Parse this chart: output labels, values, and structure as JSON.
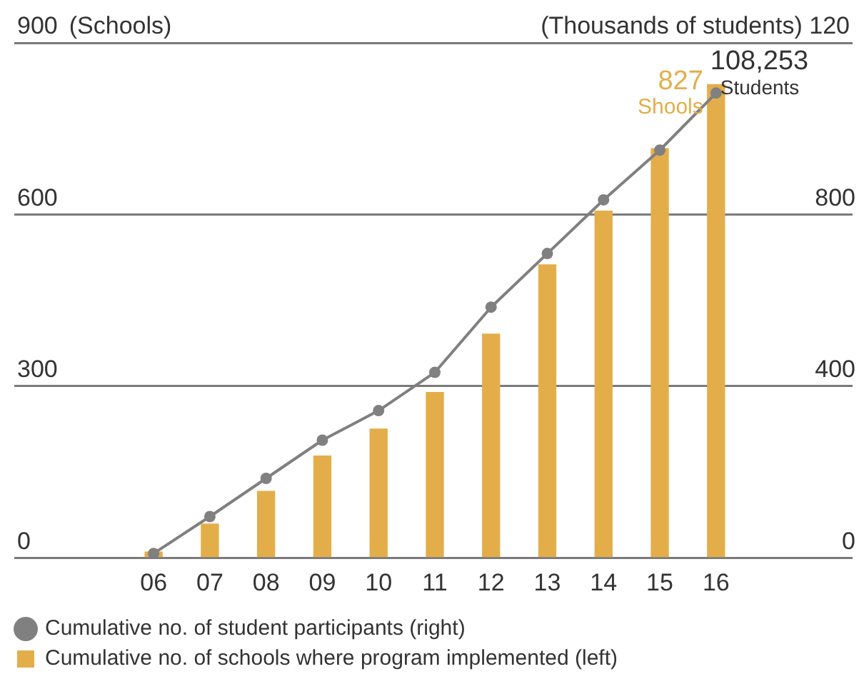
{
  "chart_data": {
    "type": "bar",
    "ylabel": "(Schools)",
    "y2label": "(Thousands of students) 120",
    "categories": [
      "06",
      "07",
      "08",
      "09",
      "10",
      "11",
      "12",
      "13",
      "14",
      "15",
      "16"
    ],
    "series": [
      {
        "name": "Cumulative no. of schools where program implemented (left)",
        "color": "#e3ae4a",
        "values": [
          10,
          59,
          116,
          178,
          225,
          289,
          391,
          512,
          606,
          715,
          827
        ]
      },
      {
        "name": "Cumulative no. of student participants (right)",
        "type": "line",
        "axis": "y2",
        "color": "#808080",
        "values": [
          10,
          96,
          185,
          274,
          343,
          432,
          584,
          709,
          834,
          950,
          1083
        ]
      }
    ],
    "ylim": [
      0,
      900
    ],
    "yticks": [
      0,
      300,
      600,
      900
    ],
    "y2lim": [
      0,
      1200
    ],
    "y2ticks": [
      0,
      400,
      800
    ],
    "annotations": [
      {
        "text": "827",
        "x": "16",
        "y": 827
      },
      {
        "text": "Shools",
        "x": "16",
        "y": 827
      },
      "108,253",
      "Students"
    ],
    "grid": "y",
    "legend": "bottom",
    "marker": "circle",
    "line_style": "solid"
  }
}
